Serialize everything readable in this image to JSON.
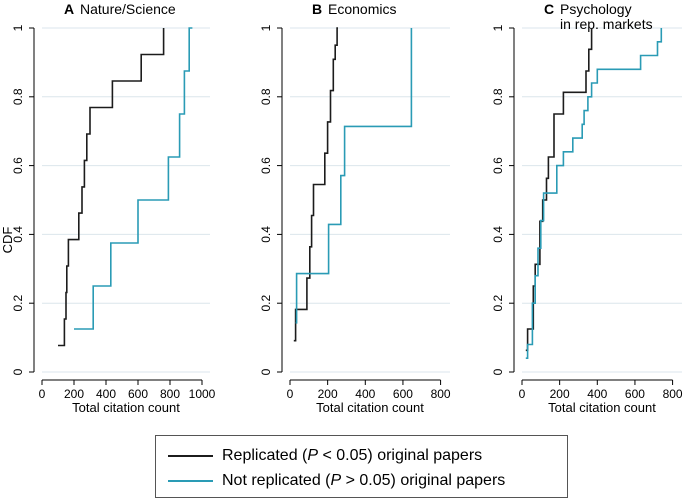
{
  "colors": {
    "replicated": "#1c1c1c",
    "not_replicated": "#2a9bb5",
    "grid": "#dbe6ec",
    "axis": "#000000"
  },
  "y_axis_title": "CDF",
  "legend": {
    "replicated": {
      "pre": "Replicated (",
      "p": "P",
      "post": " < 0.05) original papers"
    },
    "not_replicated": {
      "pre": "Not replicated (",
      "p": "P",
      "post": " > 0.05) original papers"
    }
  },
  "chart_data": [
    {
      "type": "line",
      "panel_letter": "A",
      "title": "Nature/Science",
      "xlabel": "Total citation count",
      "ylabel": "CDF",
      "xlim": [
        0,
        1050
      ],
      "ylim": [
        0,
        1
      ],
      "xticks": [
        0,
        200,
        400,
        600,
        800,
        1000
      ],
      "yticks": [
        0,
        0.2,
        0.4,
        0.6,
        0.8,
        1
      ],
      "series": [
        {
          "name": "Replicated (P < 0.05) original papers",
          "x": [
            100,
            140,
            150,
            155,
            165,
            180,
            230,
            250,
            265,
            280,
            300,
            440,
            620,
            760,
            760
          ],
          "y": [
            0.077,
            0.154,
            0.231,
            0.308,
            0.385,
            0.385,
            0.462,
            0.538,
            0.615,
            0.692,
            0.769,
            0.846,
            0.923,
            1.0,
            1.0
          ]
        },
        {
          "name": "Not replicated (P > 0.05) original papers",
          "x": [
            200,
            320,
            430,
            600,
            790,
            860,
            890,
            920,
            940,
            940
          ],
          "y": [
            0.125,
            0.25,
            0.375,
            0.5,
            0.625,
            0.75,
            0.875,
            1.0,
            1.0,
            1.0
          ]
        }
      ]
    },
    {
      "type": "line",
      "panel_letter": "B",
      "title": "Economics",
      "xlabel": "Total citation count",
      "ylabel": "",
      "xlim": [
        0,
        850
      ],
      "ylim": [
        0,
        1
      ],
      "xticks": [
        0,
        200,
        400,
        600,
        800
      ],
      "yticks": [
        0,
        0.2,
        0.4,
        0.6,
        0.8,
        1
      ],
      "series": [
        {
          "name": "Replicated (P < 0.05) original papers",
          "x": [
            20,
            30,
            90,
            105,
            115,
            125,
            185,
            200,
            215,
            230,
            240,
            250,
            255,
            255
          ],
          "y": [
            0.091,
            0.182,
            0.273,
            0.364,
            0.455,
            0.545,
            0.636,
            0.727,
            0.818,
            0.909,
            0.95,
            1.0,
            1.0,
            1.0
          ]
        },
        {
          "name": "Not replicated (P > 0.05) original papers",
          "x": [
            30,
            35,
            145,
            205,
            270,
            290,
            645,
            645
          ],
          "y": [
            0.143,
            0.286,
            0.286,
            0.429,
            0.571,
            0.714,
            0.857,
            1.0
          ]
        }
      ]
    },
    {
      "type": "line",
      "panel_letter": "C",
      "title": "Psychology",
      "subtitle": "in rep. markets",
      "xlabel": "Total citation count",
      "ylabel": "",
      "xlim": [
        0,
        850
      ],
      "ylim": [
        0,
        1
      ],
      "xticks": [
        0,
        200,
        400,
        600,
        800
      ],
      "yticks": [
        0,
        0.2,
        0.4,
        0.6,
        0.8,
        1
      ],
      "series": [
        {
          "name": "Replicated (P < 0.05) original papers",
          "x": [
            20,
            30,
            60,
            70,
            95,
            110,
            130,
            140,
            170,
            220,
            340,
            355,
            370,
            370
          ],
          "y": [
            0.063,
            0.125,
            0.25,
            0.313,
            0.438,
            0.5,
            0.563,
            0.625,
            0.75,
            0.813,
            0.875,
            0.938,
            1.0,
            1.0
          ]
        },
        {
          "name": "Not replicated (P > 0.05) original papers",
          "x": [
            20,
            30,
            55,
            70,
            85,
            100,
            115,
            150,
            185,
            220,
            270,
            320,
            330,
            350,
            370,
            400,
            630,
            720,
            740,
            740
          ],
          "y": [
            0.04,
            0.08,
            0.2,
            0.28,
            0.36,
            0.44,
            0.52,
            0.52,
            0.6,
            0.64,
            0.68,
            0.72,
            0.76,
            0.8,
            0.84,
            0.88,
            0.92,
            0.96,
            1.0,
            1.0
          ]
        }
      ]
    }
  ]
}
